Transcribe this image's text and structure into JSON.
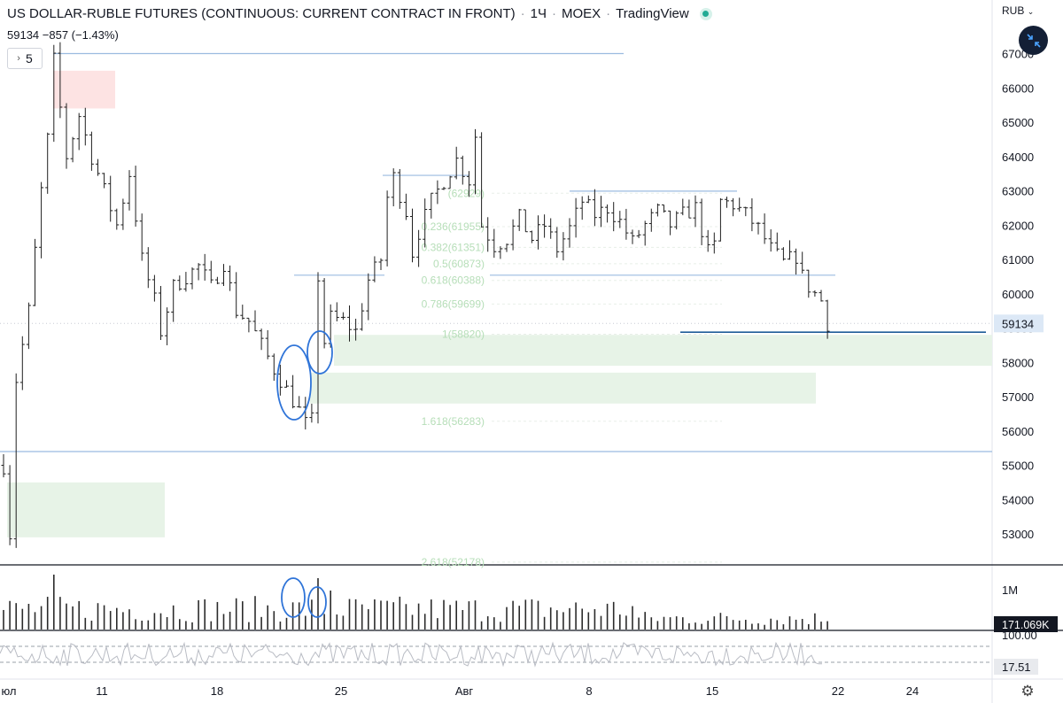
{
  "header": {
    "title": "US DOLLAR-RUBLE FUTURES (CONTINUOUS: CURRENT CONTRACT IN FRONT)",
    "interval": "1Ч",
    "exchange": "MOEX",
    "source": "TradingView",
    "last_price": "59134",
    "change": "−857 (−1.43%)"
  },
  "interval_selector": {
    "value": "5"
  },
  "price_axis": {
    "currency": "RUB"
  },
  "colors": {
    "candle": "#1f1f1f",
    "hline": "#9bbbe0",
    "zone_green": "#e7f3e7",
    "zone_red": "#fde3e3",
    "fib_text": "#b6deb8",
    "annotation": "#2f74d8",
    "price_tag": "#dce8f6",
    "volume_tag": "#131722"
  },
  "chart_data": {
    "type": "candlestick",
    "timeframe": "1H",
    "x_ticks": [
      "юл",
      "11",
      "18",
      "25",
      "Авг",
      "8",
      "15",
      "22",
      "24"
    ],
    "y_ticks": [
      53000,
      54000,
      55000,
      56000,
      57000,
      58000,
      59000,
      60000,
      61000,
      62000,
      63000,
      64000,
      65000,
      66000,
      67000
    ],
    "y_range": [
      52400,
      68200
    ],
    "last_price": 59134,
    "price_path": [
      [
        0,
        55000
      ],
      [
        1,
        53000
      ],
      [
        2,
        57500
      ],
      [
        4,
        59500
      ],
      [
        6,
        63000
      ],
      [
        7,
        64500
      ],
      [
        8,
        66800
      ],
      [
        10,
        64000
      ],
      [
        12,
        65200
      ],
      [
        14,
        64000
      ],
      [
        16,
        63000
      ],
      [
        18,
        62000
      ],
      [
        20,
        63500
      ],
      [
        22,
        61000
      ],
      [
        24,
        59800
      ],
      [
        25,
        58900
      ],
      [
        27,
        60200
      ],
      [
        29,
        60500
      ],
      [
        31,
        60800
      ],
      [
        33,
        60200
      ],
      [
        35,
        60900
      ],
      [
        37,
        59500
      ],
      [
        39,
        59200
      ],
      [
        41,
        58500
      ],
      [
        43,
        57800
      ],
      [
        45,
        57200
      ],
      [
        47,
        56600
      ],
      [
        48,
        56200
      ],
      [
        49,
        56300
      ],
      [
        50,
        60500
      ],
      [
        51,
        58600
      ],
      [
        52,
        59300
      ],
      [
        54,
        59200
      ],
      [
        56,
        58900
      ],
      [
        58,
        60400
      ],
      [
        60,
        61000
      ],
      [
        61,
        62800
      ],
      [
        62,
        63400
      ],
      [
        64,
        62400
      ],
      [
        65,
        61200
      ],
      [
        66,
        61800
      ],
      [
        68,
        62700
      ],
      [
        70,
        63300
      ],
      [
        72,
        63900
      ],
      [
        74,
        63300
      ],
      [
        75,
        64600
      ],
      [
        76,
        62000
      ],
      [
        78,
        61400
      ],
      [
        80,
        61600
      ],
      [
        82,
        62200
      ],
      [
        84,
        61600
      ],
      [
        86,
        62000
      ],
      [
        88,
        61300
      ],
      [
        90,
        61900
      ],
      [
        92,
        62700
      ],
      [
        94,
        62300
      ],
      [
        96,
        62500
      ],
      [
        98,
        62100
      ],
      [
        100,
        61500
      ],
      [
        102,
        62000
      ],
      [
        104,
        62400
      ],
      [
        106,
        62000
      ],
      [
        108,
        62300
      ],
      [
        110,
        62500
      ],
      [
        112,
        61200
      ],
      [
        113,
        61400
      ],
      [
        114,
        62700
      ],
      [
        116,
        62600
      ],
      [
        118,
        62300
      ],
      [
        120,
        61900
      ],
      [
        122,
        61300
      ],
      [
        124,
        60900
      ],
      [
        126,
        61100
      ],
      [
        127,
        60500
      ],
      [
        128,
        60200
      ],
      [
        130,
        59800
      ],
      [
        131,
        59134
      ]
    ],
    "fib_levels": [
      {
        "label": "(62929)",
        "value": 62929
      },
      {
        "label": "0.236(61955)",
        "value": 61955
      },
      {
        "label": "0.382(61351)",
        "value": 61351
      },
      {
        "label": "0.5(60873)",
        "value": 60873
      },
      {
        "label": "0.618(60388)",
        "value": 60388
      },
      {
        "label": "0.786(59699)",
        "value": 59699
      },
      {
        "label": "1(58820)",
        "value": 58820
      },
      {
        "label": "1.618(56283)",
        "value": 56283
      },
      {
        "label": "2.618(52178)",
        "value": 52178
      }
    ],
    "horizontal_levels": [
      67000,
      63450,
      62990,
      60540,
      55400,
      58880
    ],
    "zones": [
      {
        "type": "resistance",
        "from": 65400,
        "to": 66500
      },
      {
        "type": "support",
        "from": 57900,
        "to": 58800
      },
      {
        "type": "support",
        "from": 56800,
        "to": 57700
      },
      {
        "type": "support",
        "from": 52900,
        "to": 54500
      }
    ],
    "volume": {
      "axis_label": "1M",
      "last_value": "171.069K"
    },
    "oscillator": {
      "upper_label": "100.00",
      "last_value": "17.51"
    }
  }
}
